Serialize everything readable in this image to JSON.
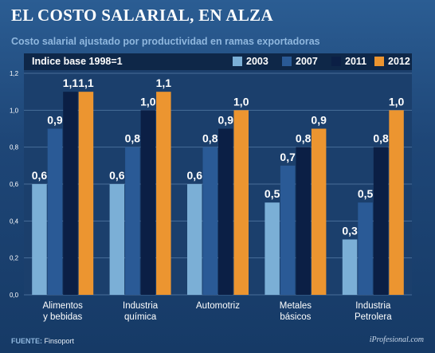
{
  "title": "EL COSTO SALARIAL, EN ALZA",
  "subtitle": "Costo salarial ajustado por productividad en ramas exportadoras",
  "legend_caption": "Indice base 1998=1",
  "source_label": "FUENTE:",
  "source_value": "Finsoport",
  "brand": "iProfesional.com",
  "chart_data": {
    "type": "bar",
    "categories": [
      [
        "Alimentos",
        "y bebidas"
      ],
      [
        "Industria",
        "química"
      ],
      [
        "Automotriz"
      ],
      [
        "Metales",
        "básicos"
      ],
      [
        "Industria",
        "Petrolera"
      ]
    ],
    "series": [
      {
        "name": "2003",
        "color": "#7bafd6",
        "values": [
          0.6,
          0.6,
          0.6,
          0.5,
          0.3
        ],
        "labels": [
          "0,6",
          "0,6",
          "0,6",
          "0,5",
          "0,3"
        ]
      },
      {
        "name": "2007",
        "color": "#2a5a96",
        "values": [
          0.9,
          0.8,
          0.8,
          0.7,
          0.5
        ],
        "labels": [
          "0,9",
          "0,8",
          "0,8",
          "0,7",
          "0,5"
        ]
      },
      {
        "name": "2011",
        "color": "#0b1f45",
        "values": [
          1.1,
          1.0,
          0.9,
          0.8,
          0.8
        ],
        "labels": [
          "1,1",
          "1,0",
          "0,9",
          "0,8",
          "0,8"
        ]
      },
      {
        "name": "2012",
        "color": "#ec9530",
        "values": [
          1.1,
          1.1,
          1.0,
          0.9,
          1.0
        ],
        "labels": [
          "1,1",
          "1,1",
          "1,0",
          "0,9",
          "1,0"
        ]
      }
    ],
    "yticks": [
      "0,0",
      "0,2",
      "0,4",
      "0,6",
      "0,8",
      "1,0",
      "1,2"
    ],
    "ylim": [
      0,
      1.2
    ],
    "grid": true
  },
  "colors": {
    "background": "#1e4677",
    "legend_bar": "#0e2748",
    "subtitle": "#8fb7de"
  }
}
